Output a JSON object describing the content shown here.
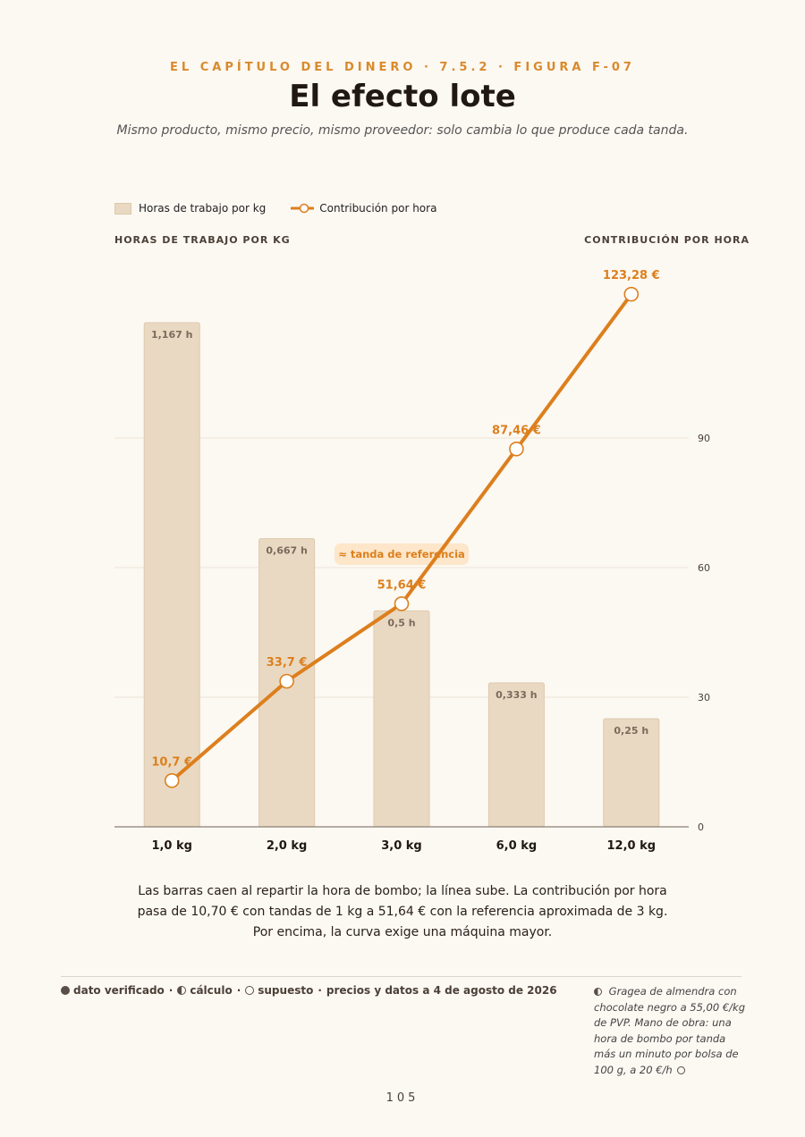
{
  "header": {
    "kicker": "EL CAPÍTULO DEL DINERO · 7.5.2 · FIGURA F-07",
    "title": "El efecto lote",
    "subtitle": "Mismo producto, mismo precio, mismo proveedor: solo cambia lo que produce cada tanda."
  },
  "chart_data": {
    "type": "bar",
    "categories": [
      "1,0 kg",
      "2,0 kg",
      "3,0 kg",
      "6,0 kg",
      "12,0 kg"
    ],
    "series": [
      {
        "name": "Horas de trabajo por kg",
        "type": "bar",
        "axis": "left",
        "values": [
          1.167,
          0.667,
          0.5,
          0.333,
          0.25
        ],
        "labels": [
          "1,167 h",
          "0,667 h",
          "0,5 h",
          "0,333 h",
          "0,25 h"
        ],
        "color": "#ead9c2"
      },
      {
        "name": "Contribución por hora",
        "type": "line",
        "axis": "right",
        "values": [
          10.7,
          33.7,
          51.64,
          87.46,
          123.28
        ],
        "labels": [
          "10,7 €",
          "33,7 €",
          "51,64 €",
          "87,46 €",
          "123,28 €"
        ],
        "color": "#dc7f1d"
      }
    ],
    "ylabel_left": "HORAS DE TRABAJO POR KG",
    "ylabel_right": "CONTRIBUCIÓN POR HORA",
    "y_right_ticks": [
      "0",
      "30",
      "60",
      "90"
    ],
    "y_right_range": [
      0,
      130
    ],
    "y_left_range": [
      0,
      1.3
    ],
    "annotation": {
      "text": "≈ tanda de referencia",
      "category": "3,0 kg"
    },
    "grid": true,
    "legend_position": "top-left"
  },
  "description": {
    "line1": "Las barras caen al repartir la hora de bombo; la línea sube. La contribución por hora",
    "line2": "pasa de 10,70 € con tandas de 1 kg a 51,64 € con la referencia aproximada de 3 kg.",
    "line3": "Por encima, la curva exige una máquina mayor."
  },
  "footer": {
    "verified": "dato verificado",
    "calculation": "cálculo",
    "assumption": "supuesto",
    "date_note": "precios y datos a 4 de agosto de 2026",
    "separator": "·",
    "footnote": "Gragea de almendra con chocolate negro a 55,00 €/kg de PVP. Mano de obra: una hora de bombo por tanda más un minuto por bolsa de 100 g, a 20 €/h",
    "page_number": "105"
  },
  "colors": {
    "accent": "#dc7f1d",
    "bar": "#ead9c2",
    "bar_border": "#dcc9ad",
    "annotation_bg": "#fde6c9"
  }
}
